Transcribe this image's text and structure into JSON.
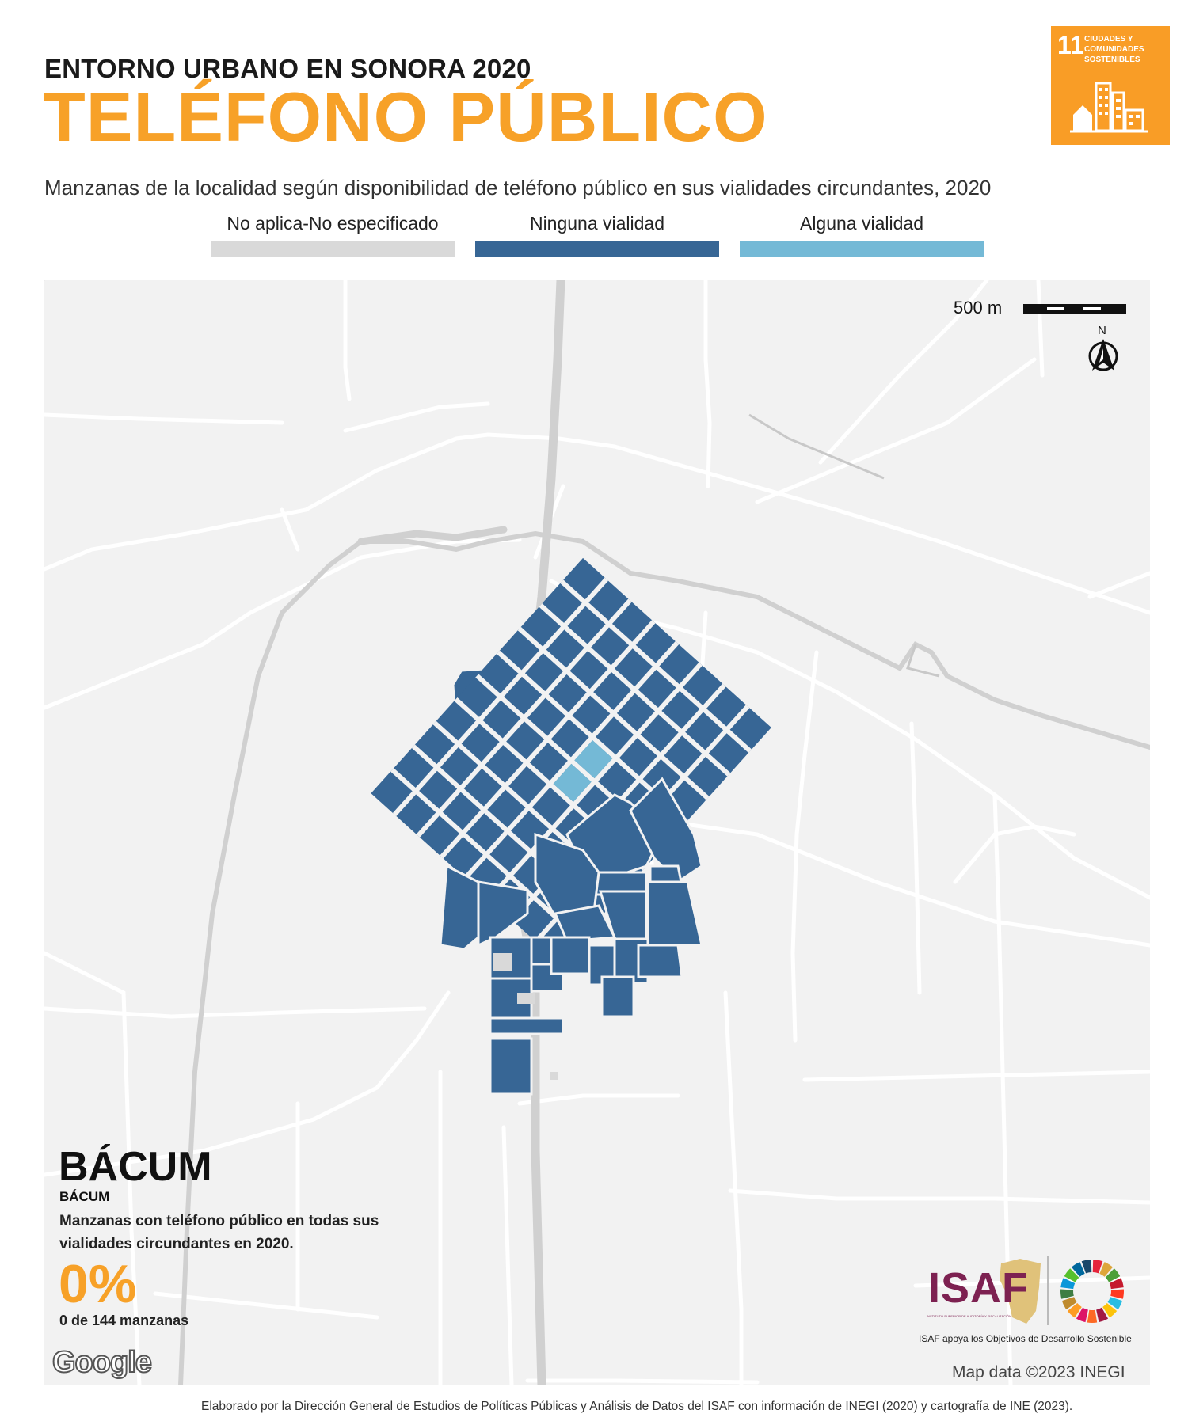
{
  "header": {
    "kicker": "ENTORNO URBANO EN SONORA 2020",
    "title": "TELÉFONO PÚBLICO",
    "subtitle": "Manzanas de la localidad según disponibilidad de teléfono público en sus vialidades circundantes, 2020"
  },
  "sdg_badge": {
    "number": "11",
    "text": "CIUDADES Y COMUNIDADES SOSTENIBLES",
    "color": "#f99d26"
  },
  "legend": [
    {
      "label": "No aplica-No especificado",
      "color": "#d9d9d9"
    },
    {
      "label": "Ninguna vialidad",
      "color": "#376695"
    },
    {
      "label": "Alguna vialidad",
      "color": "#74b9d6"
    }
  ],
  "map": {
    "scale_label": "500 m",
    "north_label": "N",
    "attribution": "Map data ©2023 INEGI",
    "google_logo": "Google",
    "road_color": "#ffffff",
    "highway_color": "#d0d0d0",
    "background_color": "#f2f2f2"
  },
  "summary": {
    "locality_big": "BÁCUM",
    "locality_small": "BÁCUM",
    "description": "Manzanas con teléfono público en todas sus vialidades circundantes en 2020.",
    "percent": "0%",
    "count_text": "0 de 144 manzanas"
  },
  "logos": {
    "isaf": "ISAF",
    "isaf_sub": "INSTITUTO SUPERIOR DE AUDITORÍA Y FISCALIZACIÓN",
    "caption": "ISAF apoya los Objetivos de Desarrollo Sostenible",
    "sdg_wheel_colors": [
      "#e5243b",
      "#dda63a",
      "#4c9f38",
      "#c5192d",
      "#ff3a21",
      "#26bde2",
      "#fcc30b",
      "#a21942",
      "#fd6925",
      "#dd1367",
      "#fd9d24",
      "#bf8b2e",
      "#3f7e44",
      "#0a97d9",
      "#56c02b",
      "#00689d",
      "#19486a"
    ]
  },
  "footer": {
    "text": "Elaborado por la Dirección General de Estudios de Políticas Públicas y Análisis de Datos del ISAF con información de INEGI (2020) y cartografía de INE (2023)."
  }
}
